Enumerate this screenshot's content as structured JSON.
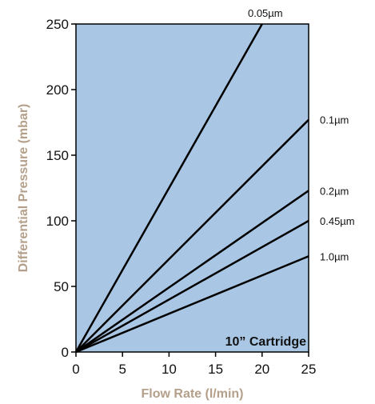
{
  "chart_data": {
    "type": "line",
    "title": "",
    "xlabel": "Flow Rate (l/min)",
    "ylabel": "Differential Pressure (mbar)",
    "xlim": [
      0,
      25
    ],
    "ylim": [
      0,
      250
    ],
    "xticks": [
      "0",
      "5",
      "10",
      "15",
      "20",
      "25"
    ],
    "yticks": [
      "0",
      "50",
      "100",
      "150",
      "200",
      "250"
    ],
    "grid": false,
    "legend": "none",
    "annotation": "10” Cartridge",
    "series": [
      {
        "name": "0.05µm",
        "x": [
          0,
          20
        ],
        "y": [
          0,
          250
        ]
      },
      {
        "name": "0.1µm",
        "x": [
          0,
          25
        ],
        "y": [
          0,
          177
        ]
      },
      {
        "name": "0.2µm",
        "x": [
          0,
          25
        ],
        "y": [
          0,
          123
        ]
      },
      {
        "name": "0.45µm",
        "x": [
          0,
          25
        ],
        "y": [
          0,
          100
        ]
      },
      {
        "name": "1.0µm",
        "x": [
          0,
          25
        ],
        "y": [
          0,
          73
        ]
      }
    ],
    "colors": {
      "plot_background": "#a9c6e4",
      "lines": "#000000",
      "axis_titles": "#b4a08a"
    }
  }
}
